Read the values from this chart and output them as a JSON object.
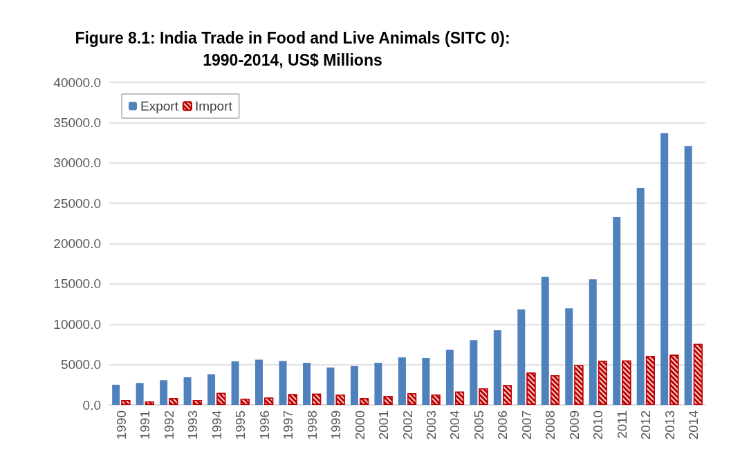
{
  "chart_data": {
    "type": "bar",
    "title": "Figure 8.1: India Trade in Food and Live Animals (SITC 0):\n1990-2014, US$ Millions",
    "categories": [
      "1990",
      "1991",
      "1992",
      "1993",
      "1994",
      "1995",
      "1996",
      "1997",
      "1998",
      "1999",
      "2000",
      "2001",
      "2002",
      "2003",
      "2004",
      "2005",
      "2006",
      "2007",
      "2008",
      "2009",
      "2010",
      "2011",
      "2012",
      "2013",
      "2014"
    ],
    "series": [
      {
        "name": "Export",
        "color": "#4f81bd",
        "values": [
          2500,
          2720,
          3060,
          3420,
          3800,
          5390,
          5610,
          5440,
          5220,
          4640,
          4810,
          5220,
          5890,
          5830,
          6840,
          8030,
          9250,
          11840,
          15870,
          11980,
          15570,
          23290,
          26900,
          33680,
          32100
        ]
      },
      {
        "name": "Import",
        "color": "#c00000",
        "values": [
          610,
          420,
          830,
          610,
          1470,
          780,
          890,
          1330,
          1390,
          1280,
          830,
          1110,
          1440,
          1280,
          1640,
          2060,
          2450,
          4000,
          3670,
          4920,
          5450,
          5500,
          6090,
          6200,
          7560
        ]
      }
    ],
    "ylim": [
      0,
      40000
    ],
    "yticks": [
      {
        "value": 0,
        "label": "0.0"
      },
      {
        "value": 5000,
        "label": "5000.0"
      },
      {
        "value": 10000,
        "label": "10000.0"
      },
      {
        "value": 15000,
        "label": "15000.0"
      },
      {
        "value": 20000,
        "label": "20000.0"
      },
      {
        "value": 25000,
        "label": "25000.0"
      },
      {
        "value": 30000,
        "label": "30000.0"
      },
      {
        "value": 35000,
        "label": "35000.0"
      },
      {
        "value": 40000,
        "label": "40000.0"
      }
    ],
    "grid": "y",
    "legend": "top left"
  }
}
